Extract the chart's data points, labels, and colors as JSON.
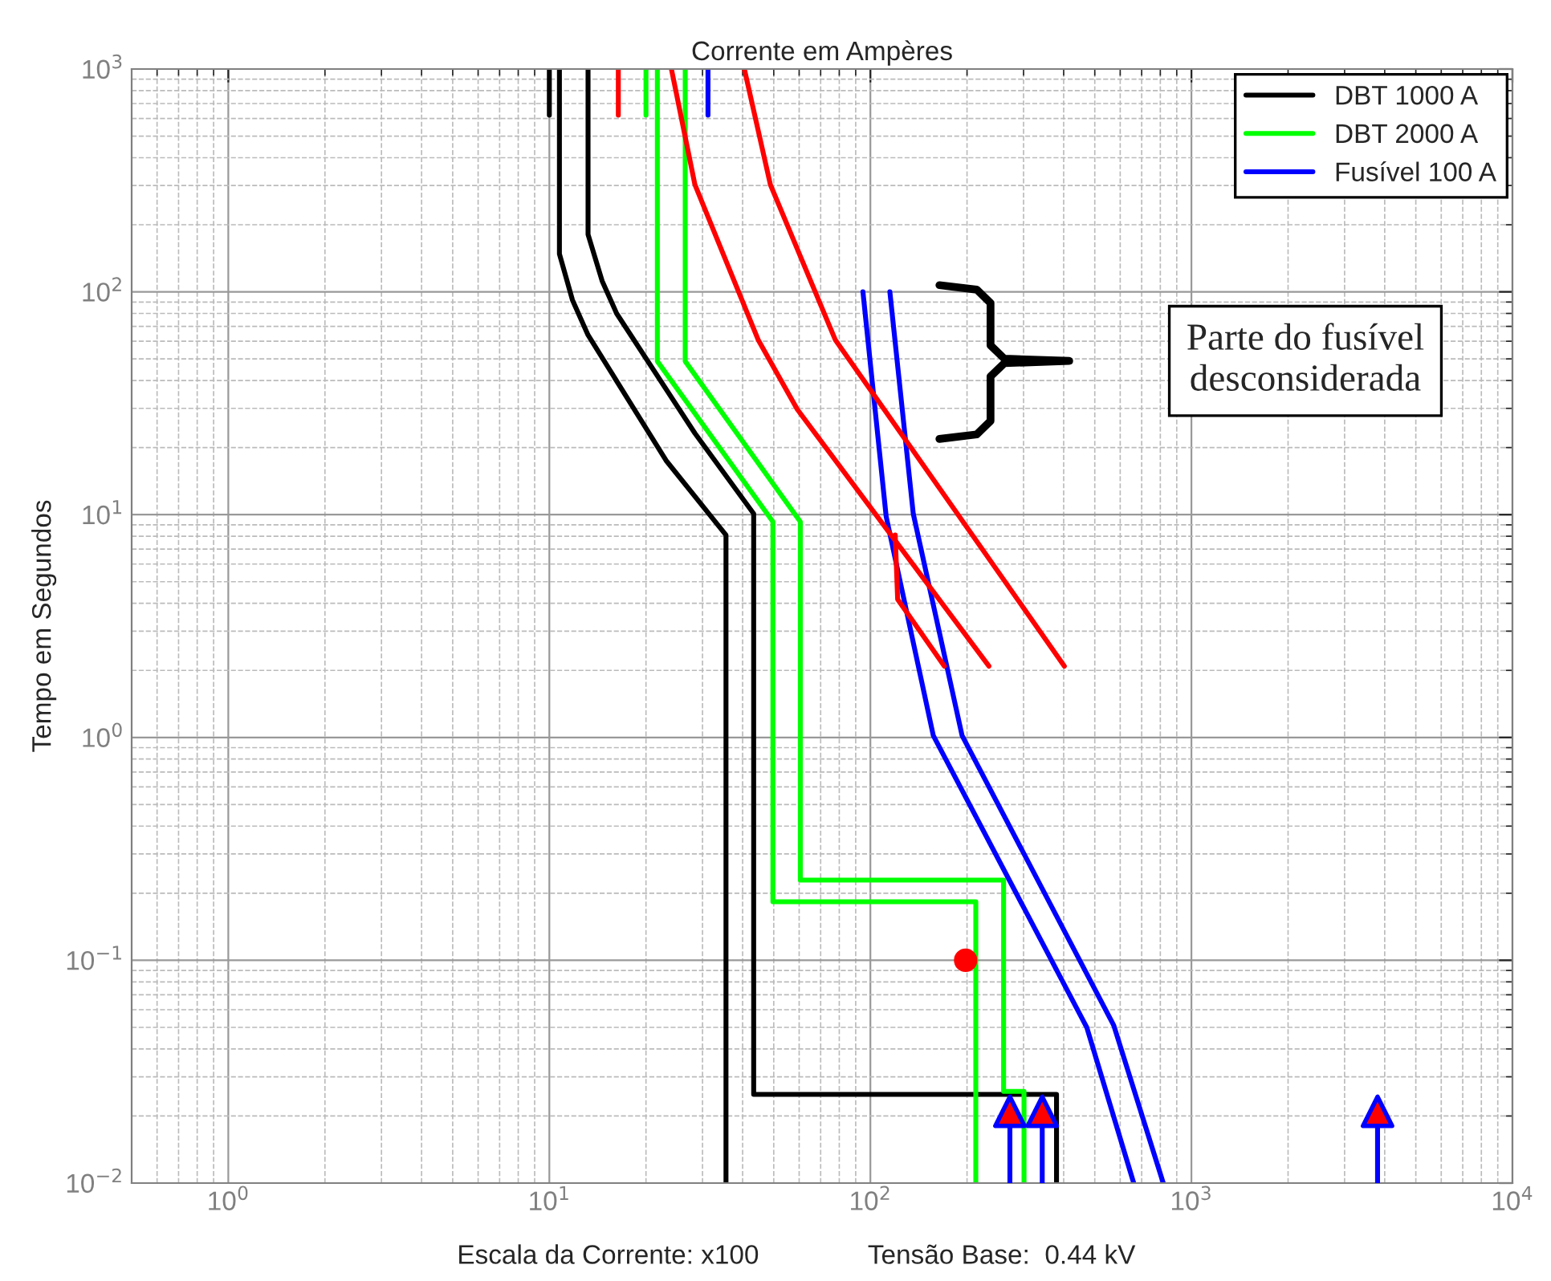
{
  "chart_data": {
    "type": "line",
    "title": "Corrente em Ampères",
    "xlabel": "Escala da Corrente: x100",
    "ylabel": "Tempo em Segundos",
    "annotations": [
      "Tensão Base:  0.44 kV",
      "Parte do fusível\ndesconsiderada"
    ],
    "log": "xy",
    "grid": true,
    "legend": "top right",
    "xlim": [
      0.5,
      10000
    ],
    "ylim": [
      0.01,
      1000
    ],
    "xticks": [
      {
        "value": 1,
        "label": "10$^{0}$"
      },
      {
        "value": 10,
        "label": "10$^{1}$"
      },
      {
        "value": 100,
        "label": "10$^{2}$"
      },
      {
        "value": 1000,
        "label": "10$^{3}$"
      },
      {
        "value": 10000,
        "label": "10$^{4}$"
      }
    ],
    "yticks": [
      {
        "value": 0.01,
        "label": "10$^{−2}$"
      },
      {
        "value": 0.1,
        "label": "10$^{−1}$"
      },
      {
        "value": 1,
        "label": "10$^{0}$"
      },
      {
        "value": 10,
        "label": "10$^{1}$"
      },
      {
        "value": 100,
        "label": "10$^{2}$"
      },
      {
        "value": 1000,
        "label": "10$^{3}$"
      }
    ],
    "series": [
      {
        "name": "DBT 1000 A",
        "color": "#000000",
        "x": [
          10.75,
          10.75,
          11.8,
          13.2,
          23.1,
          35.5,
          35.5
        ],
        "values": [
          1000,
          148,
          92,
          64,
          17.5,
          8.1,
          0.01
        ]
      },
      {
        "color": "#000000",
        "x": [
          13.2,
          13.2,
          14.6,
          16.2,
          28.4,
          43.3,
          43.3,
          380,
          380
        ],
        "values": [
          1000,
          181,
          112,
          80,
          23.2,
          10.1,
          0.025,
          0.025,
          0.01
        ]
      },
      {
        "name": "DBT 2000 A",
        "color": "#00ff00",
        "x": [
          21.7,
          21.7,
          49.7,
          49.7,
          213,
          213
        ],
        "values": [
          1000,
          48.8,
          9.3,
          0.183,
          0.183,
          0.01
        ]
      },
      {
        "color": "#00ff00",
        "x": [
          26.5,
          26.5,
          60.5,
          60.5,
          260,
          260,
          301,
          301
        ],
        "values": [
          1000,
          48.8,
          9.3,
          0.229,
          0.229,
          0.0258,
          0.0258,
          0.01
        ]
      },
      {
        "name": "Fusível 100 A",
        "color": "#0000ff",
        "x": [
          94.8,
          112,
          157,
          472,
          661
        ],
        "values": [
          100,
          9.8,
          1.02,
          0.05,
          0.01
        ]
      },
      {
        "color": "#0000ff",
        "x": [
          115,
          136,
          193,
          573,
          817
        ],
        "values": [
          100,
          10.1,
          1.02,
          0.051,
          0.01
        ]
      },
      {
        "color": "#ff0000",
        "x": [
          24.0,
          28.4,
          44.7,
          59.2,
          234
        ],
        "values": [
          1000,
          303,
          61,
          29.7,
          2.09
        ]
      },
      {
        "color": "#ff0000",
        "x": [
          40.5,
          48.8,
          77.7,
          402
        ],
        "values": [
          1000,
          303,
          61,
          2.09
        ]
      },
      {
        "color": "#ff0000",
        "x": [
          119.5,
          121.6,
          170
        ],
        "values": [
          8.1,
          4.17,
          2.09
        ]
      },
      {
        "color": "#000000",
        "x": [
          10.0,
          10.0
        ],
        "values": [
          1000,
          621
        ]
      },
      {
        "color": "#ff0000",
        "x": [
          16.4,
          16.4
        ],
        "values": [
          1000,
          621
        ]
      },
      {
        "color": "#00ff00",
        "x": [
          20.0,
          20.0
        ],
        "values": [
          1000,
          621
        ]
      },
      {
        "color": "#0000ff",
        "x": [
          31.2,
          31.2
        ],
        "values": [
          1000,
          621
        ]
      },
      {
        "type": "lollipop",
        "color": "#0000ff",
        "colors": [
          "#ff0000",
          "#ff0000",
          "#ff0000"
        ],
        "marker": "triangle",
        "x": [
          272,
          343,
          3800
        ],
        "values": [
          0.021,
          0.021,
          0.021
        ]
      },
      {
        "type": "scatter",
        "color": "#ff0000",
        "marker": "circle",
        "x": [
          198
        ],
        "values": [
          0.1
        ]
      }
    ]
  }
}
